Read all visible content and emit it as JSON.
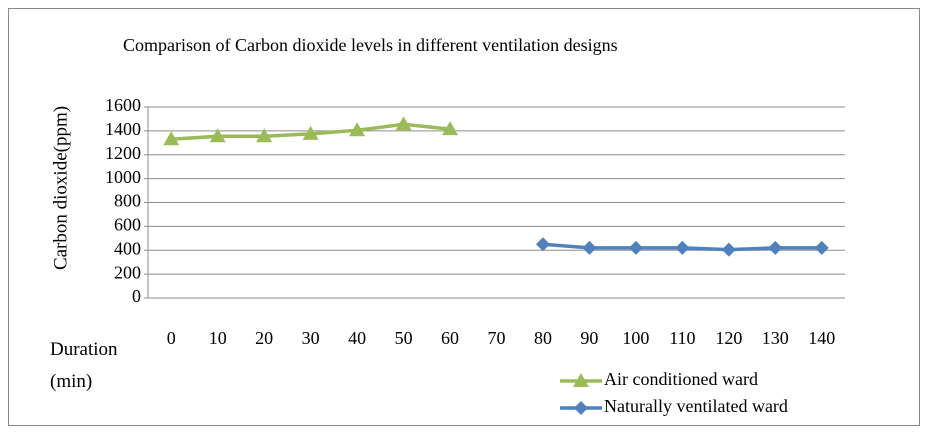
{
  "chart_data": {
    "type": "line",
    "title": "Comparison of Carbon dioxide levels in different ventilation designs",
    "y_label": "Carbon dioxide(ppm)",
    "x_label": "Duration (min)",
    "categories": [
      0,
      10,
      20,
      30,
      40,
      50,
      60,
      70,
      80,
      90,
      100,
      110,
      120,
      130,
      140
    ],
    "series": [
      {
        "name": "Air conditioned ward",
        "color": "#9bbb59",
        "marker": "triangle",
        "values": [
          1330,
          1355,
          1355,
          1375,
          1405,
          1455,
          1415,
          null,
          null,
          null,
          null,
          null,
          null,
          null,
          null
        ]
      },
      {
        "name": "Naturally ventilated ward",
        "color": "#4f81bd",
        "marker": "diamond",
        "values": [
          null,
          null,
          null,
          null,
          null,
          null,
          null,
          null,
          450,
          420,
          420,
          420,
          405,
          420,
          420
        ]
      }
    ],
    "ylim": [
      0,
      1600
    ],
    "yticks": [
      0,
      200,
      400,
      600,
      800,
      1000,
      1200,
      1400,
      1600
    ],
    "grid": true,
    "legend": "bottom-right"
  }
}
